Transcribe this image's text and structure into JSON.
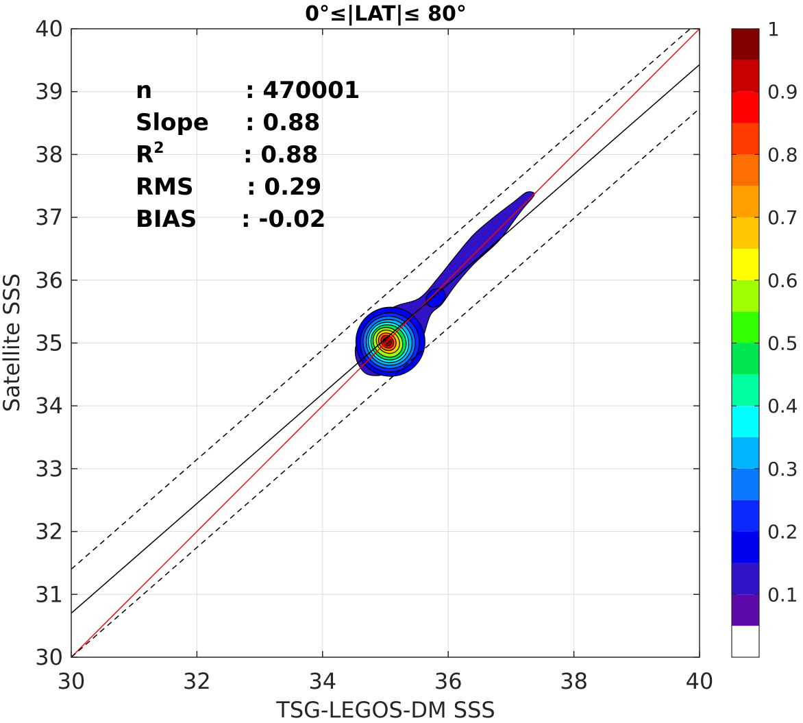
{
  "chart_data": {
    "type": "heatmap",
    "subtype": "density-contour-scatter",
    "title": "0°≤|LAT|≤ 80°",
    "xlabel": "TSG-LEGOS-DM SSS",
    "ylabel": "Satellite SSS",
    "xlim": [
      30,
      40
    ],
    "ylim": [
      30,
      40
    ],
    "xticks": [
      30,
      32,
      34,
      36,
      38,
      40
    ],
    "yticks": [
      30,
      31,
      32,
      33,
      34,
      35,
      36,
      37,
      38,
      39,
      40
    ],
    "grid": true,
    "colorbar": {
      "range": [
        0,
        1
      ],
      "tick_labels": [
        "0.1",
        "0.2",
        "0.3",
        "0.4",
        "0.5",
        "0.6",
        "0.7",
        "0.8",
        "0.9",
        "1"
      ],
      "tick_values": [
        0.1,
        0.2,
        0.3,
        0.4,
        0.5,
        0.6,
        0.7,
        0.8,
        0.9,
        1.0
      ],
      "levels": [
        {
          "from": 0.0,
          "to": 0.05,
          "color": "#ffffff"
        },
        {
          "from": 0.05,
          "to": 0.1,
          "color": "#5a0aa8"
        },
        {
          "from": 0.1,
          "to": 0.15,
          "color": "#3212c6"
        },
        {
          "from": 0.15,
          "to": 0.2,
          "color": "#0000f0"
        },
        {
          "from": 0.2,
          "to": 0.25,
          "color": "#0a28ff"
        },
        {
          "from": 0.25,
          "to": 0.3,
          "color": "#0a78ff"
        },
        {
          "from": 0.3,
          "to": 0.35,
          "color": "#00b4ff"
        },
        {
          "from": 0.35,
          "to": 0.4,
          "color": "#00ffff"
        },
        {
          "from": 0.4,
          "to": 0.45,
          "color": "#00ffa0"
        },
        {
          "from": 0.45,
          "to": 0.5,
          "color": "#00e650"
        },
        {
          "from": 0.5,
          "to": 0.55,
          "color": "#32ff00"
        },
        {
          "from": 0.55,
          "to": 0.6,
          "color": "#a0ff00"
        },
        {
          "from": 0.6,
          "to": 0.65,
          "color": "#ffff00"
        },
        {
          "from": 0.65,
          "to": 0.7,
          "color": "#ffc800"
        },
        {
          "from": 0.7,
          "to": 0.75,
          "color": "#ffa000"
        },
        {
          "from": 0.75,
          "to": 0.8,
          "color": "#ff6e00"
        },
        {
          "from": 0.8,
          "to": 0.85,
          "color": "#ff3c00"
        },
        {
          "from": 0.85,
          "to": 0.9,
          "color": "#ff0000"
        },
        {
          "from": 0.9,
          "to": 0.95,
          "color": "#c80000"
        },
        {
          "from": 0.95,
          "to": 1.0,
          "color": "#820000"
        }
      ]
    },
    "density": {
      "peak": {
        "x": 35.03,
        "y": 35.02
      },
      "outer_contour": [
        [
          34.52,
          34.85
        ],
        [
          34.56,
          34.68
        ],
        [
          34.68,
          34.52
        ],
        [
          34.85,
          34.48
        ],
        [
          35.05,
          34.52
        ],
        [
          35.25,
          34.62
        ],
        [
          35.45,
          34.82
        ],
        [
          35.6,
          35.1
        ],
        [
          35.72,
          35.45
        ],
        [
          35.9,
          35.62
        ],
        [
          36.1,
          35.9
        ],
        [
          36.4,
          36.25
        ],
        [
          36.8,
          36.62
        ],
        [
          37.05,
          36.95
        ],
        [
          37.2,
          37.15
        ],
        [
          37.37,
          37.36
        ],
        [
          37.25,
          37.4
        ],
        [
          37.05,
          37.25
        ],
        [
          36.75,
          37.02
        ],
        [
          36.4,
          36.72
        ],
        [
          36.05,
          36.3
        ],
        [
          35.85,
          36.05
        ],
        [
          35.55,
          35.72
        ],
        [
          35.2,
          35.6
        ],
        [
          34.9,
          35.45
        ],
        [
          34.7,
          35.2
        ],
        [
          34.55,
          35.0
        ]
      ],
      "isolated_contour": {
        "center": [
          35.8,
          35.72
        ],
        "rx": 0.17,
        "ry": 0.13,
        "level": 0.15
      },
      "core_levels": [
        {
          "level": 0.15,
          "cx": 35.08,
          "cy": 35.02,
          "rx": 0.55,
          "ry": 0.55
        },
        {
          "level": 0.2,
          "cx": 35.07,
          "cy": 35.01,
          "rx": 0.47,
          "ry": 0.47
        },
        {
          "level": 0.25,
          "cx": 35.06,
          "cy": 35.01,
          "rx": 0.41,
          "ry": 0.42
        },
        {
          "level": 0.3,
          "cx": 35.06,
          "cy": 35.01,
          "rx": 0.36,
          "ry": 0.37
        },
        {
          "level": 0.35,
          "cx": 35.05,
          "cy": 35.01,
          "rx": 0.31,
          "ry": 0.33
        },
        {
          "level": 0.45,
          "cx": 35.05,
          "cy": 35.01,
          "rx": 0.27,
          "ry": 0.29
        },
        {
          "level": 0.55,
          "cx": 35.04,
          "cy": 35.01,
          "rx": 0.22,
          "ry": 0.25
        },
        {
          "level": 0.65,
          "cx": 35.04,
          "cy": 35.02,
          "rx": 0.17,
          "ry": 0.2
        },
        {
          "level": 0.75,
          "cx": 35.03,
          "cy": 35.02,
          "rx": 0.13,
          "ry": 0.15
        },
        {
          "level": 0.85,
          "cx": 35.03,
          "cy": 35.02,
          "rx": 0.09,
          "ry": 0.11
        },
        {
          "level": 0.9,
          "cx": 35.03,
          "cy": 35.02,
          "rx": 0.06,
          "ry": 0.07
        },
        {
          "level": 0.95,
          "cx": 35.03,
          "cy": 35.02,
          "rx": 0.03,
          "ry": 0.04
        }
      ]
    },
    "lines": [
      {
        "id": "identity-line",
        "color": "#ff0000",
        "dash": "solid",
        "x": [
          30,
          40
        ],
        "y": [
          30,
          40
        ]
      },
      {
        "id": "regression-line",
        "color": "#000000",
        "dash": "solid",
        "x": [
          30,
          40
        ],
        "y": [
          30.7,
          39.43
        ]
      },
      {
        "id": "upper-bound-line",
        "color": "#000000",
        "dash": "dashed",
        "x": [
          30,
          40
        ],
        "y": [
          31.4,
          40.13
        ]
      },
      {
        "id": "lower-bound-line",
        "color": "#000000",
        "dash": "dashed",
        "x": [
          30,
          40
        ],
        "y": [
          30.0,
          38.73
        ]
      }
    ],
    "stats": [
      {
        "label": "n",
        "sup": "",
        "value": ": 470001"
      },
      {
        "label": "Slope",
        "sup": "",
        "value": ": 0.88"
      },
      {
        "label": "R",
        "sup": "2",
        "value": ": 0.88"
      },
      {
        "label": "RMS",
        "sup": "",
        "value": ": 0.29"
      },
      {
        "label": "BIAS",
        "sup": "",
        "value": ": -0.02"
      }
    ]
  }
}
